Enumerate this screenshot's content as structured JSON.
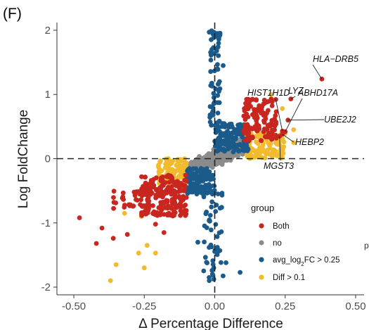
{
  "panel_label": "(F)",
  "stray_text": "p",
  "chart_data": {
    "type": "scatter",
    "title": "",
    "xlabel": "Δ Percentage Difference",
    "ylabel": "Log FoldChange",
    "xlim": [
      -0.56,
      0.53
    ],
    "ylim": [
      -2.12,
      2.12
    ],
    "xticks": [
      "-0.50",
      "-0.25",
      "0.00",
      "0.25",
      "0.50"
    ],
    "xtick_values": [
      -0.5,
      -0.25,
      0,
      0.25,
      0.5
    ],
    "yticks": [
      "-2",
      "-1",
      "0",
      "1",
      "2"
    ],
    "ytick_values": [
      -2,
      -1,
      0,
      1,
      2
    ],
    "grid": false,
    "reference_lines": [
      {
        "axis": "x",
        "value": 0,
        "style": "dashed"
      },
      {
        "axis": "y",
        "value": 0,
        "style": "dashed"
      }
    ],
    "legend": {
      "title": "group",
      "placement": "bottom-right",
      "entries": [
        {
          "label": "Both",
          "color": "#c8261f"
        },
        {
          "label": "no",
          "color": "#8c8c8c"
        },
        {
          "label": "avg_log2FC > 0.25",
          "color": "#1a5b8c"
        },
        {
          "label": "Diff > 0.1",
          "color": "#f2bb2e"
        }
      ]
    },
    "series": [
      {
        "name": "Both",
        "color": "#c8261f",
        "clusters": [
          {
            "x": [
              0.1,
              0.22
            ],
            "y": [
              0.28,
              0.95
            ],
            "n": 130
          },
          {
            "x": [
              -0.26,
              -0.1
            ],
            "y": [
              -0.9,
              -0.25
            ],
            "n": 200
          },
          {
            "x": [
              -0.36,
              -0.22
            ],
            "y": [
              -0.8,
              -0.5
            ],
            "n": 35
          }
        ],
        "points": [
          {
            "x": -0.48,
            "y": -0.92
          },
          {
            "x": -0.4,
            "y": -1.08
          },
          {
            "x": -0.42,
            "y": -1.32
          },
          {
            "x": -0.36,
            "y": -1.24
          },
          {
            "x": -0.18,
            "y": -1.15
          },
          {
            "x": -0.21,
            "y": -1.02
          },
          {
            "x": -0.31,
            "y": -1.18
          },
          {
            "x": 0.38,
            "y": 1.24
          },
          {
            "x": 0.27,
            "y": 0.93
          },
          {
            "x": 0.26,
            "y": 0.6
          },
          {
            "x": 0.25,
            "y": 0.42
          },
          {
            "x": 0.24,
            "y": 0.38
          },
          {
            "x": 0.24,
            "y": 0.43
          },
          {
            "x": 0.23,
            "y": 0.35
          }
        ]
      },
      {
        "name": "no",
        "color": "#8c8c8c",
        "clusters": [
          {
            "x": [
              -0.11,
              0.1
            ],
            "y": [
              -0.3,
              0.3
            ],
            "n": 520,
            "band": 0.17
          }
        ],
        "points": []
      },
      {
        "name": "avg_log2FC > 0.25",
        "color": "#1a5b8c",
        "clusters": [
          {
            "x": [
              0.0,
              0.12
            ],
            "y": [
              0.1,
              0.55
            ],
            "n": 140
          },
          {
            "x": [
              -0.1,
              0.0
            ],
            "y": [
              -0.55,
              -0.15
            ],
            "n": 120
          },
          {
            "x": [
              -0.02,
              0.02
            ],
            "y": [
              0.5,
              2.0
            ],
            "n": 60
          },
          {
            "x": [
              -0.04,
              0.03
            ],
            "y": [
              -1.9,
              -0.5
            ],
            "n": 50
          }
        ],
        "points": [
          {
            "x": 0.01,
            "y": 1.95
          },
          {
            "x": -0.01,
            "y": 1.7
          },
          {
            "x": 0.03,
            "y": 1.45
          },
          {
            "x": -0.02,
            "y": -1.85
          },
          {
            "x": 0.04,
            "y": -1.62
          },
          {
            "x": -0.06,
            "y": -1.3
          },
          {
            "x": 0.09,
            "y": -1.77
          }
        ]
      },
      {
        "name": "Diff > 0.1",
        "color": "#f2bb2e",
        "clusters": [
          {
            "x": [
              0.1,
              0.25
            ],
            "y": [
              0.0,
              0.4
            ],
            "n": 120
          },
          {
            "x": [
              -0.2,
              -0.1
            ],
            "y": [
              -0.4,
              0.0
            ],
            "n": 100
          }
        ],
        "points": [
          {
            "x": -0.32,
            "y": -0.85
          },
          {
            "x": -0.26,
            "y": -0.9
          },
          {
            "x": -0.24,
            "y": -1.35
          },
          {
            "x": -0.27,
            "y": -1.47
          },
          {
            "x": -0.21,
            "y": -1.47
          },
          {
            "x": -0.35,
            "y": -1.65
          },
          {
            "x": -0.37,
            "y": -1.9
          },
          {
            "x": -0.25,
            "y": -1.7
          },
          {
            "x": 0.2,
            "y": 1.0
          },
          {
            "x": 0.24,
            "y": 0.78
          },
          {
            "x": 0.28,
            "y": 0.45
          },
          {
            "x": 0.28,
            "y": 0.25
          }
        ]
      }
    ],
    "annotations": [
      {
        "text": "HLA−DRB5",
        "x": 0.38,
        "y": 1.24
      },
      {
        "text": "LYZ",
        "x": 0.27,
        "y": 0.93
      },
      {
        "text": "HIST1H1D",
        "x": 0.24,
        "y": 0.43
      },
      {
        "text": "ABHD17A",
        "x": 0.25,
        "y": 0.42
      },
      {
        "text": "UBE2J2",
        "x": 0.26,
        "y": 0.6
      },
      {
        "text": "HEBP2",
        "x": 0.24,
        "y": 0.38
      },
      {
        "text": "MGST3",
        "x": 0.23,
        "y": 0.35
      }
    ]
  }
}
